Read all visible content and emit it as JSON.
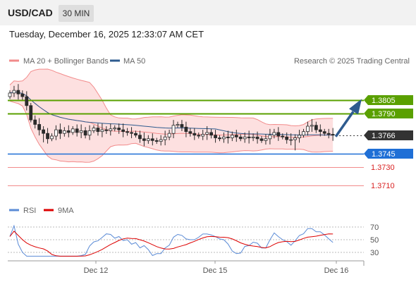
{
  "header": {
    "pair": "USD/CAD",
    "timeframe": "30 MIN"
  },
  "datetime": "Tuesday, December 16, 2025 12:33:07 AM CET",
  "legend": {
    "bollinger": "MA 20 + Bollinger Bands",
    "ma50": "MA 50",
    "copyright": "Research © 2025 Trading Central",
    "rsi": "RSI",
    "rsi_ma": "9MA"
  },
  "colors": {
    "up": "#ffffff",
    "down": "#2b2b2b",
    "bollinger": "#f28b8b",
    "band_fill": "#fde0e0",
    "ma50": "#2e5b8f",
    "resistance": "#5aa000",
    "support": "#1f6fd6",
    "weak_support": "#f28b8b",
    "arrow": "#2e5b8f",
    "rsi": "#5b8bd6",
    "rsi_ma": "#dd0000"
  },
  "chart_data": {
    "type": "candlestick",
    "price_scale": {
      "min": 1.3695,
      "max": 1.3835
    },
    "levels": [
      {
        "label": "1.3805",
        "value": 1.3805,
        "kind": "resistance"
      },
      {
        "label": "1.3790",
        "value": 1.379,
        "kind": "resistance"
      },
      {
        "label": "1.3766",
        "value": 1.3766,
        "kind": "last"
      },
      {
        "label": "1.3745",
        "value": 1.3745,
        "kind": "support"
      },
      {
        "label": "1.3730",
        "value": 1.373,
        "kind": "weak_support"
      },
      {
        "label": "1.3710",
        "value": 1.371,
        "kind": "weak_support"
      }
    ],
    "closes": [
      1.3813,
      1.3816,
      1.3812,
      1.3809,
      1.3799,
      1.3783,
      1.3778,
      1.3772,
      1.3768,
      1.3762,
      1.3765,
      1.3772,
      1.3768,
      1.3771,
      1.3769,
      1.3773,
      1.3769,
      1.3771,
      1.3766,
      1.3771,
      1.3774,
      1.377,
      1.3772,
      1.3771,
      1.3773,
      1.3774,
      1.3772,
      1.377,
      1.3769,
      1.3768,
      1.3766,
      1.3762,
      1.376,
      1.3762,
      1.376,
      1.3759,
      1.3761,
      1.3764,
      1.3768,
      1.3777,
      1.3778,
      1.3775,
      1.377,
      1.3768,
      1.3766,
      1.3765,
      1.3767,
      1.3769,
      1.3766,
      1.3763,
      1.3762,
      1.3764,
      1.3763,
      1.3766,
      1.3764,
      1.3762,
      1.3764,
      1.3763,
      1.3764,
      1.3762,
      1.376,
      1.3762,
      1.3766,
      1.3769,
      1.3765,
      1.3764,
      1.3761,
      1.3761,
      1.3763,
      1.3766,
      1.377,
      1.3776,
      1.3777,
      1.3772,
      1.377,
      1.3768,
      1.3767,
      1.3766
    ],
    "rsi_axis": [
      30,
      50,
      70
    ],
    "x_labels": [
      "Dec 12",
      "Dec 15",
      "Dec 16"
    ]
  }
}
